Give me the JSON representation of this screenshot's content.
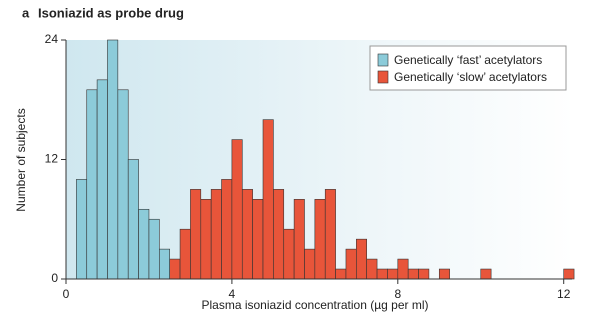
{
  "chart_data": {
    "type": "histogram",
    "panel_label": "a",
    "title": "Isoniazid as probe drug",
    "xlabel": "Plasma isoniazid concentration (µg per ml)",
    "ylabel": "Number of subjects",
    "bins": [
      0.25,
      0.5,
      0.75,
      1,
      1.25,
      1.5,
      1.75,
      2,
      2.25,
      2.5,
      2.75,
      3,
      3.25,
      3.5,
      3.75,
      4,
      4.25,
      4.5,
      4.75,
      5,
      5.25,
      5.5,
      5.75,
      6,
      6.25,
      6.5,
      6.75,
      7,
      7.25,
      7.5,
      7.75,
      8,
      8.25,
      8.5,
      8.75,
      9,
      9.25,
      9.5,
      9.75,
      10,
      10.25,
      10.5,
      10.75,
      11,
      11.25,
      11.5,
      11.75,
      12,
      12.25
    ],
    "series": [
      {
        "name": "Genetically ‘fast’ acetylators",
        "color": "#8ccbd9",
        "values": [
          10,
          19,
          20,
          24,
          19,
          12,
          7,
          6,
          3,
          0,
          0,
          0,
          0,
          0,
          0,
          0,
          0,
          0,
          0,
          0,
          0,
          0,
          0,
          0,
          0,
          0,
          0,
          0,
          0,
          0,
          0,
          0,
          0,
          0,
          0,
          0,
          0,
          0,
          0,
          0,
          0,
          0,
          0,
          0,
          0,
          0,
          0,
          0
        ]
      },
      {
        "name": "Genetically ‘slow’ acetylators",
        "color": "#e8553a",
        "values": [
          0,
          0,
          0,
          0,
          0,
          0,
          0,
          0,
          0,
          2,
          5,
          9,
          8,
          9,
          10,
          14,
          9,
          8,
          16,
          9,
          5,
          8,
          3,
          8,
          9,
          1,
          3,
          4,
          2,
          1,
          1,
          2,
          1,
          1,
          0,
          1,
          0,
          0,
          0,
          1,
          0,
          0,
          0,
          0,
          0,
          0,
          0,
          1
        ]
      }
    ],
    "xlim": [
      0,
      12.2
    ],
    "ylim": [
      0,
      24
    ],
    "xticks": [
      0,
      4,
      8,
      12
    ],
    "yticks": [
      0,
      12,
      24
    ],
    "legend": "top-right"
  }
}
